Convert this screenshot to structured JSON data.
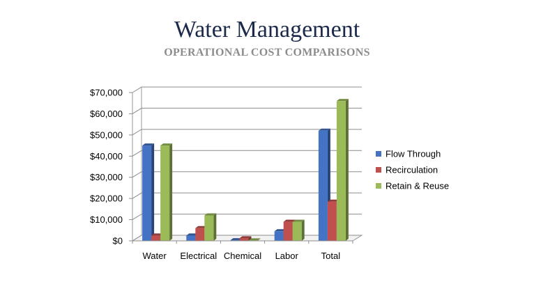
{
  "header": {
    "title": "Water Management",
    "subtitle": "OPERATIONAL COST COMPARISONS"
  },
  "chart_data": {
    "type": "bar",
    "style": "3d-clustered-column",
    "title": "",
    "xlabel": "",
    "ylabel": "",
    "categories": [
      "Water",
      "Electrical",
      "Chemical",
      "Labor",
      "Total"
    ],
    "series": [
      {
        "name": "Flow Through",
        "color": "#4472c4",
        "values": [
          45000,
          2500,
          300,
          4500,
          52000
        ]
      },
      {
        "name": "Recirculation",
        "color": "#c0504d",
        "values": [
          2500,
          6000,
          1200,
          9000,
          18500
        ]
      },
      {
        "name": "Retain & Reuse",
        "color": "#9bbb59",
        "values": [
          45000,
          12000,
          200,
          9000,
          66000
        ]
      }
    ],
    "ylim": [
      0,
      70000
    ],
    "yticks": [
      0,
      10000,
      20000,
      30000,
      40000,
      50000,
      60000,
      70000
    ],
    "ytick_labels": [
      "$0",
      "$10,000",
      "$20,000",
      "$30,000",
      "$40,000",
      "$50,000",
      "$60,000",
      "$70,000"
    ],
    "grid": true,
    "legend_position": "right"
  }
}
